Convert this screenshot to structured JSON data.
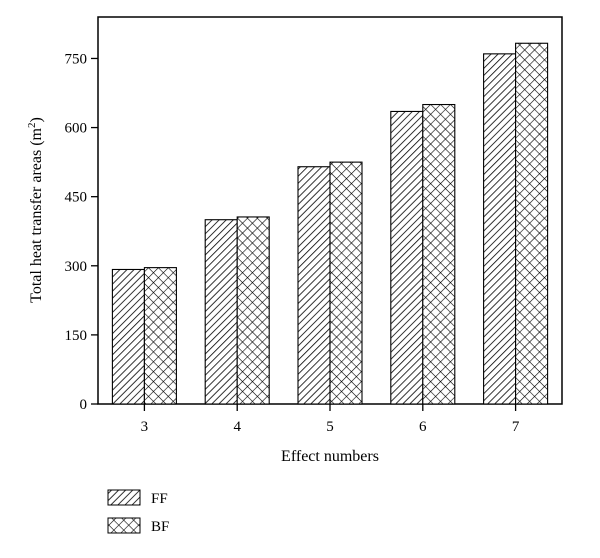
{
  "chart_data": {
    "type": "bar",
    "title": "",
    "xlabel": "Effect numbers",
    "ylabel": "Total heat transfer areas (m",
    "ylabel_sup": "2",
    "ylabel_end": ")",
    "categories": [
      "3",
      "4",
      "5",
      "6",
      "7"
    ],
    "series": [
      {
        "name": "FF",
        "values": [
          292,
          400,
          515,
          635,
          760
        ],
        "pattern": "diagonal-hatch"
      },
      {
        "name": "BF",
        "values": [
          296,
          406,
          525,
          650,
          783
        ],
        "pattern": "crosshatch"
      }
    ],
    "ylim": [
      0,
      840
    ],
    "yticks": [
      0,
      150,
      300,
      450,
      600,
      750
    ],
    "ytick_labels": [
      "0",
      "150",
      "300",
      "450",
      "600",
      "750"
    ],
    "grid": false,
    "legend_placement": "bottom-left",
    "colors": {
      "stroke": "#000000",
      "fill": "#ffffff"
    }
  }
}
